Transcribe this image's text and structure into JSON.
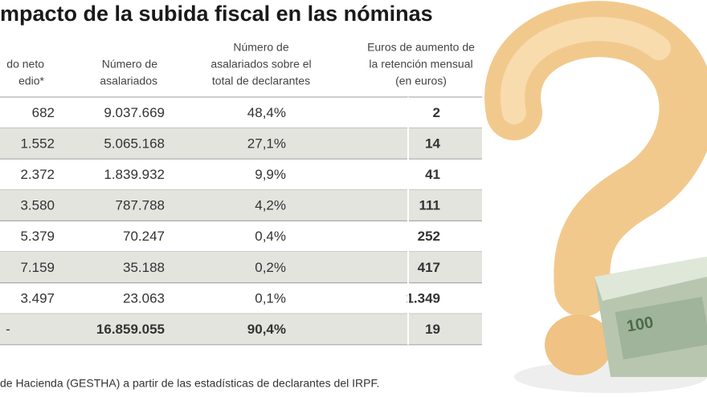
{
  "title": "mpacto de la subida fiscal en las nóminas",
  "table": {
    "headers": [
      [
        "do neto",
        "edio*"
      ],
      [
        "Número de",
        "asalariados"
      ],
      [
        "Número de",
        "asalariados sobre el",
        "total de declarantes"
      ],
      [
        "Euros de aumento de",
        "la retención mensual",
        "(en euros)"
      ]
    ],
    "rows": [
      [
        "682",
        "9.037.669",
        "48,4%",
        "2"
      ],
      [
        "1.552",
        "5.065.168",
        "27,1%",
        "14"
      ],
      [
        "2.372",
        "1.839.932",
        "9,9%",
        "41"
      ],
      [
        "3.580",
        "787.788",
        "4,2%",
        "111"
      ],
      [
        "5.379",
        "70.247",
        "0,4%",
        "252"
      ],
      [
        "7.159",
        "35.188",
        "0,2%",
        "417"
      ],
      [
        "3.497",
        "23.063",
        "0,1%",
        "1.349"
      ],
      [
        "-",
        "16.859.055",
        "90,4%",
        "19"
      ]
    ]
  },
  "footer": "de Hacienda (GESTHA) a partir de las estadísticas de declarantes del IRPF.",
  "image": {
    "bill_label": "100"
  }
}
